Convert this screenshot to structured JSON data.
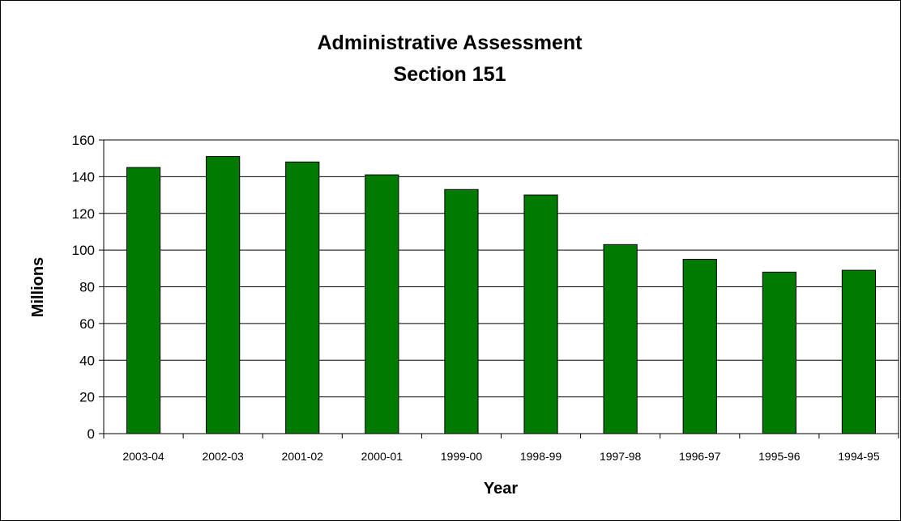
{
  "chart_data": {
    "type": "bar",
    "title": [
      "Administrative Assessment",
      "Section 151"
    ],
    "xlabel": "Year",
    "ylabel": "Millions",
    "categories": [
      "2003-04",
      "2002-03",
      "2001-02",
      "2000-01",
      "1999-00",
      "1998-99",
      "1997-98",
      "1996-97",
      "1995-96",
      "1994-95"
    ],
    "values": [
      145,
      151,
      148,
      141,
      133,
      130,
      103,
      95,
      88,
      89
    ],
    "ylim": [
      0,
      160
    ],
    "yticks": [
      0,
      20,
      40,
      60,
      80,
      100,
      120,
      140,
      160
    ],
    "grid": true,
    "legend": "none",
    "colors": {
      "bar_fill": "#007A00",
      "bar_stroke": "#000000",
      "grid": "#000000",
      "axis": "#000000"
    }
  }
}
